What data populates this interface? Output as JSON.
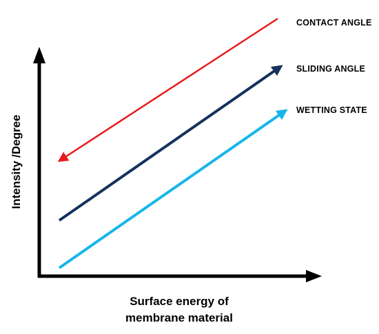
{
  "diagram": {
    "axes": {
      "y_label": "Intensity /Degree",
      "x_label_line1": "Surface energy of",
      "x_label_line2": "membrane material"
    },
    "series": [
      {
        "label": "CONTACT ANGLE",
        "color": "#e8191c",
        "direction": "decreasing"
      },
      {
        "label": "SLIDING ANGLE",
        "color": "#14325c",
        "direction": "increasing"
      },
      {
        "label": "WETTING STATE",
        "color": "#17b6ea",
        "direction": "increasing"
      }
    ],
    "arrow_color": "#000000"
  }
}
